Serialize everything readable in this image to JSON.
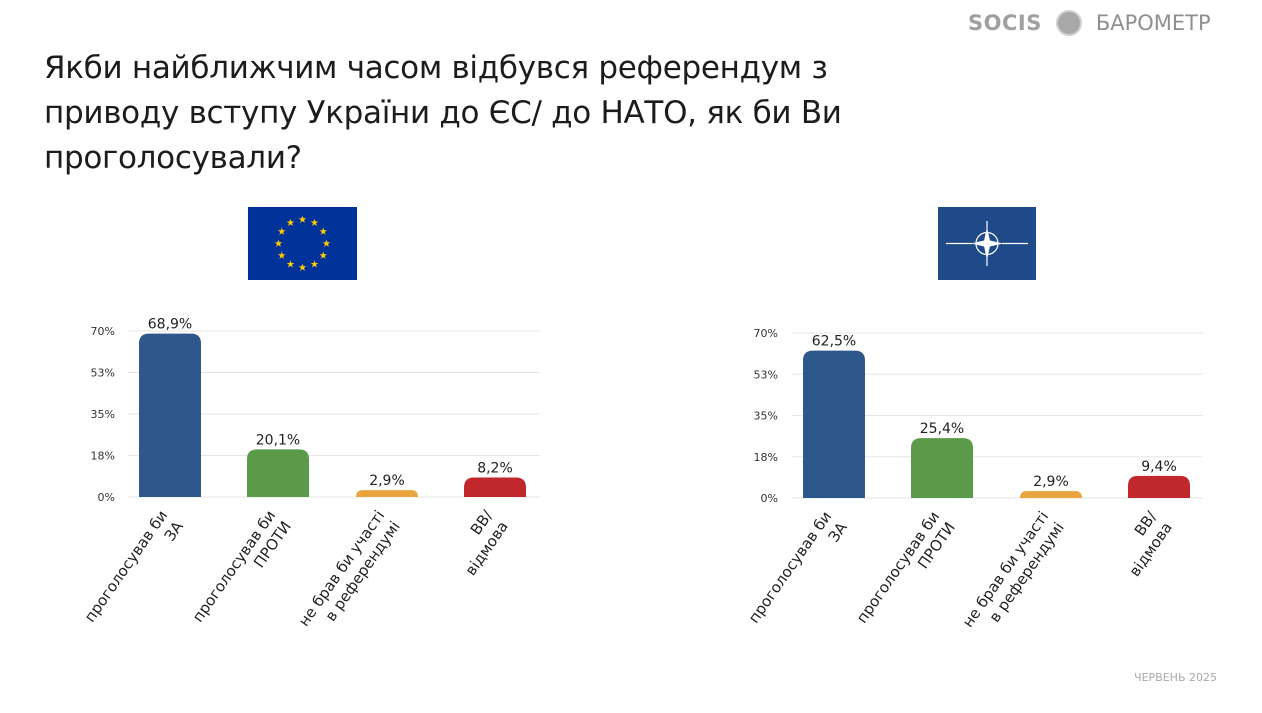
{
  "header": {
    "brand": "SOCIS",
    "brand_name": "БАРОМЕТР"
  },
  "title": "Якби найближчим часом відбувся референдум з приводу вступу України до ЄС/ до НАТО, як би Ви проголосували?",
  "footer": {
    "date": "ЧЕРВЕНЬ 2025"
  },
  "flags": [
    {
      "name": "EU",
      "color": "#003399"
    },
    {
      "name": "NATO",
      "color": "#1f4a8a"
    }
  ],
  "chart_data": [
    {
      "type": "bar",
      "title": "ЄС",
      "categories": [
        [
          "проголосував би",
          "ЗА"
        ],
        [
          "проголосував би",
          "ПРОТИ"
        ],
        [
          "не брав би участі",
          "в референдумі"
        ],
        [
          "ВВ/",
          "відмова"
        ]
      ],
      "values": [
        68.9,
        20.1,
        2.9,
        8.2
      ],
      "value_labels": [
        "68,9%",
        "20,1%",
        "2,9%",
        "8,2%"
      ],
      "yticks": [
        "0%",
        "18%",
        "35%",
        "53%",
        "70%"
      ],
      "ytick_values": [
        0,
        17.5,
        35,
        52.5,
        70
      ],
      "ylim": [
        0,
        70
      ],
      "colors": [
        "#2e578b",
        "#5b9a48",
        "#e9a43e",
        "#c1282e"
      ],
      "grid": true
    },
    {
      "type": "bar",
      "title": "НАТО",
      "categories": [
        [
          "проголосував би",
          "ЗА"
        ],
        [
          "проголосував би",
          "ПРОТИ"
        ],
        [
          "не брав би участі",
          "в референдумі"
        ],
        [
          "ВВ/",
          "відмова"
        ]
      ],
      "values": [
        62.5,
        25.4,
        2.9,
        9.4
      ],
      "value_labels": [
        "62,5%",
        "25,4%",
        "2,9%",
        "9,4%"
      ],
      "yticks": [
        "0%",
        "18%",
        "35%",
        "53%",
        "70%"
      ],
      "ytick_values": [
        0,
        17.5,
        35,
        52.5,
        70
      ],
      "ylim": [
        0,
        70
      ],
      "colors": [
        "#2e578b",
        "#5b9a48",
        "#e9a43e",
        "#c1282e"
      ],
      "grid": true
    }
  ]
}
